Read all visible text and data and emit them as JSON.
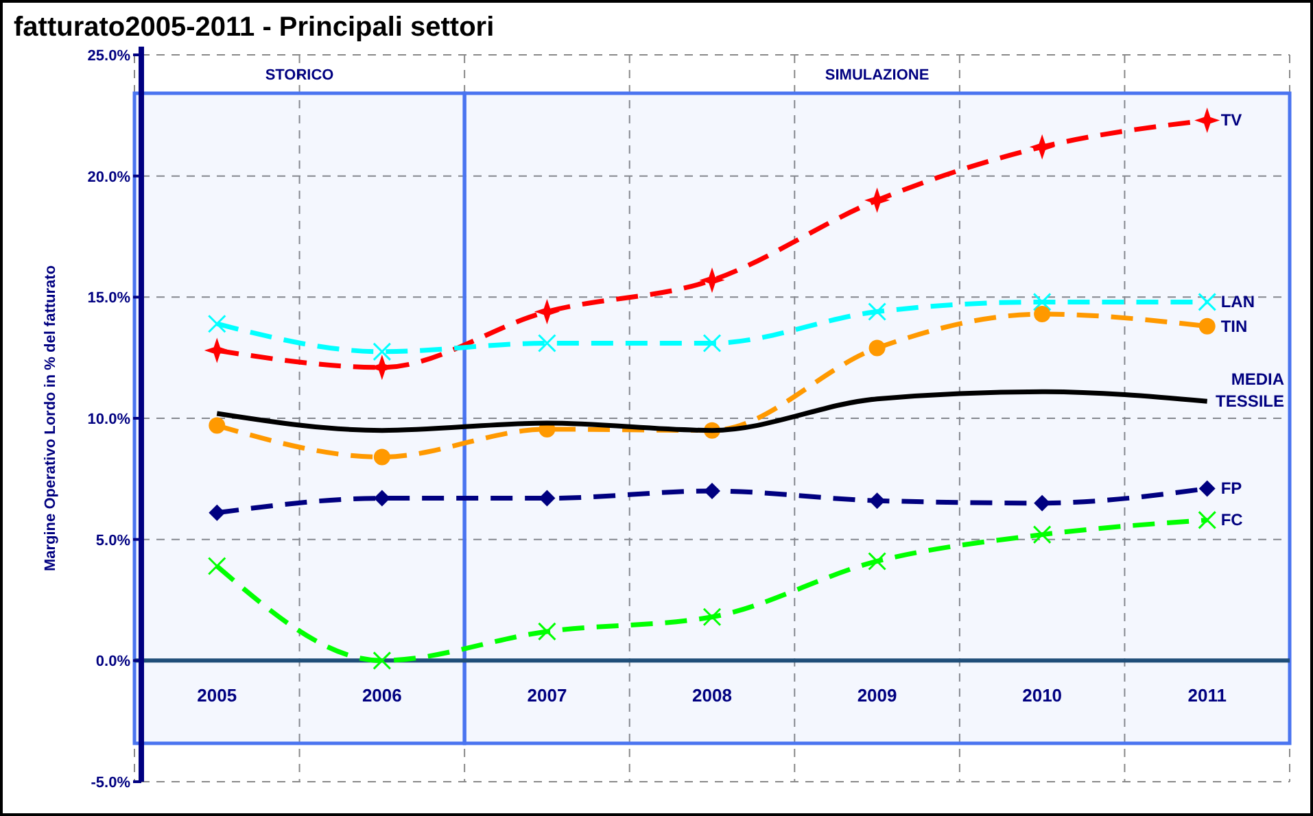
{
  "chart_data": {
    "type": "line",
    "title": "fatturato2005-2011 - Principali settori",
    "ylabel": "Margine Operativo Lordo in % del fatturato",
    "categories": [
      "2005",
      "2006",
      "2007",
      "2008",
      "2009",
      "2010",
      "2011"
    ],
    "ylim": [
      -5,
      25
    ],
    "yticks": [
      {
        "value": -5,
        "label": "-5.0%"
      },
      {
        "value": 0,
        "label": "0.0%"
      },
      {
        "value": 5,
        "label": "5.0%"
      },
      {
        "value": 10,
        "label": "10.0%"
      },
      {
        "value": 15,
        "label": "15.0%"
      },
      {
        "value": 20,
        "label": "20.0%"
      },
      {
        "value": 25,
        "label": "25.0%"
      }
    ],
    "grid": true,
    "bands": [
      {
        "axis": "x",
        "from": "2005",
        "to": "2006",
        "label": "STORICO",
        "color": "#4a74f0"
      },
      {
        "axis": "x",
        "from": "2007",
        "to": "2011",
        "label": "SIMULAZIONE",
        "color": "#4a74f0"
      }
    ],
    "series": [
      {
        "name": "TV",
        "color": "#ff0000",
        "marker": "star",
        "line_style": "dashed",
        "values": [
          12.8,
          12.1,
          14.4,
          15.7,
          19.0,
          21.2,
          22.3
        ]
      },
      {
        "name": "LAN",
        "color": "#00ffff",
        "marker": "cross",
        "line_style": "dashed",
        "values": [
          13.9,
          12.75,
          13.1,
          13.1,
          14.4,
          14.8,
          14.8
        ]
      },
      {
        "name": "TIN",
        "color": "#ff9900",
        "marker": "circle",
        "line_style": "dashed",
        "values": [
          9.7,
          8.4,
          9.55,
          9.5,
          12.9,
          14.3,
          13.8
        ]
      },
      {
        "name": "MEDIA TESSILE",
        "color": "#000000",
        "marker": "none",
        "line_style": "solid",
        "values": [
          10.2,
          9.5,
          9.8,
          9.5,
          10.8,
          11.1,
          10.7
        ]
      },
      {
        "name": "FP",
        "color": "#000080",
        "marker": "diamond",
        "line_style": "dashed",
        "values": [
          6.1,
          6.7,
          6.7,
          7.0,
          6.6,
          6.5,
          7.1
        ]
      },
      {
        "name": "FC",
        "color": "#00ff00",
        "marker": "cross",
        "line_style": "dashed",
        "values": [
          3.9,
          0,
          1.2,
          1.8,
          4.1,
          5.2,
          5.8
        ]
      }
    ]
  }
}
